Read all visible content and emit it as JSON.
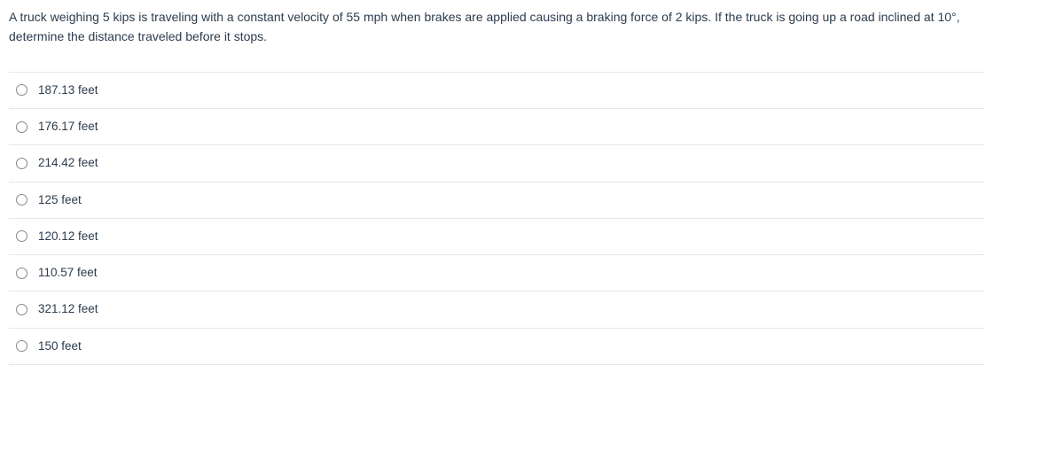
{
  "question": {
    "text": "A truck weighing 5 kips is traveling with a constant velocity of 55 mph when brakes are applied causing a braking force  of 2 kips. If the truck is going up a road inclined at 10°, determine the distance traveled before it stops.",
    "text_color": "#2b3c4e",
    "font_size": 14
  },
  "options": [
    {
      "label": "187.13 feet",
      "selected": false
    },
    {
      "label": "176.17 feet",
      "selected": false
    },
    {
      "label": "214.42 feet",
      "selected": false
    },
    {
      "label": "125 feet",
      "selected": false
    },
    {
      "label": "120.12 feet",
      "selected": false
    },
    {
      "label": "110.57 feet",
      "selected": false
    },
    {
      "label": "321.12 feet",
      "selected": false
    },
    {
      "label": "150 feet",
      "selected": false
    }
  ],
  "styling": {
    "background_color": "#ffffff",
    "border_color": "#e6e6e6",
    "radio_border": "#888888",
    "option_font_size": 13.5,
    "row_padding_v": 10
  }
}
